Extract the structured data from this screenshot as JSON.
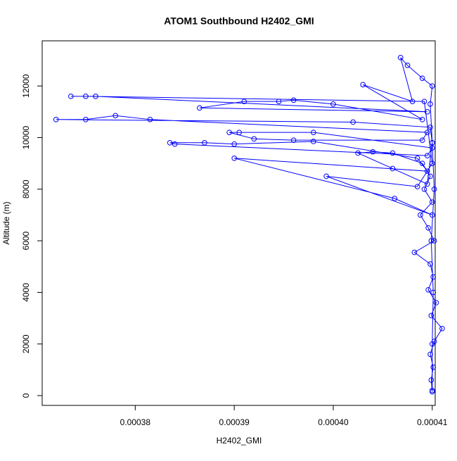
{
  "chart_data": {
    "type": "line",
    "title": "ATOM1 Southbound H2402_GMI",
    "x_label": "H2402_GMI",
    "y_label": "Altitude (m)",
    "color": "#0000ff",
    "marker": "circle-open",
    "x": [
      0.00041,
      0.0004099,
      0.0004101,
      0.0004098,
      0.0004102,
      0.000411,
      0.0004099,
      0.0004104,
      0.0004096,
      0.0004101,
      0.0004098,
      0.0004082,
      0.0004102,
      0.0004096,
      0.0004088,
      0.00041,
      0.0004092,
      0.0004098,
      0.000409,
      0.000406,
      0.000404,
      0.0004025,
      0.000406,
      0.0004095,
      0.00041,
      0.0004098,
      0.000402,
      0.000372,
      0.000375,
      0.000378,
      0.0003815,
      0.0004095,
      0.000409,
      0.000396,
      0.000392,
      0.0003895,
      0.0003905,
      0.000398,
      0.00041,
      0.0004095,
      0.000384,
      0.0003835,
      0.000387,
      0.00039,
      0.000398,
      0.0004085,
      0.0004095,
      0.00039,
      0.0004062,
      0.00041,
      0.0003993,
      0.0004085,
      0.00041,
      0.0004092,
      0.000375,
      0.0003735,
      0.000376,
      0.0004095,
      0.0003865,
      0.000391,
      0.0003945,
      0.000396,
      0.0004,
      0.000409,
      0.000403,
      0.000408,
      0.0004068,
      0.0004075,
      0.000409,
      0.00041,
      0.0004098,
      0.00041,
      0.0004102,
      0.0004099,
      0.0004101,
      0.00041,
      0.00041
    ],
    "values": [
      150,
      600,
      1100,
      1600,
      2100,
      2600,
      3100,
      3600,
      4100,
      4600,
      5100,
      5550,
      6000,
      6500,
      7000,
      7500,
      8000,
      8500,
      9000,
      9400,
      9450,
      9400,
      8800,
      8200,
      9800,
      10400,
      10600,
      10700,
      10700,
      10850,
      10700,
      10200,
      9900,
      9900,
      9950,
      10200,
      10200,
      10200,
      9600,
      9300,
      9750,
      9800,
      9800,
      9750,
      9850,
      9200,
      8700,
      9200,
      7640,
      7000,
      8500,
      8100,
      9000,
      11400,
      11600,
      11600,
      11600,
      11000,
      11150,
      11400,
      11400,
      11450,
      11300,
      10700,
      12050,
      11400,
      13100,
      12800,
      12300,
      12000,
      11300,
      9800,
      8000,
      6000,
      4000,
      2000,
      200
    ],
    "xlim": [
      0.0003706,
      0.0004103
    ],
    "ylim": [
      -380,
      13750
    ],
    "xticks": [
      0.00038,
      0.00039,
      {
        "value": 0.0004,
        "label": "0.00040"
      },
      0.00041
    ],
    "yticks": [
      0,
      2000,
      4000,
      6000,
      8000,
      10000,
      12000
    ]
  }
}
